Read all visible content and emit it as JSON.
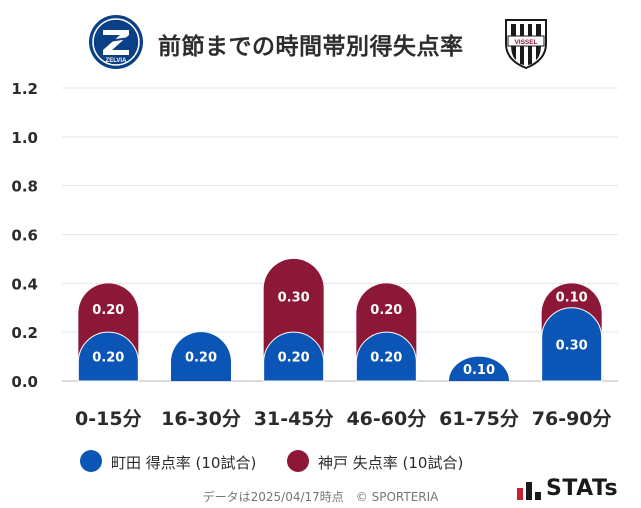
{
  "header": {
    "title": "前節までの時間帯別得失点率",
    "left_logo_text": "ZELVIA",
    "right_logo_text": "VISSEL"
  },
  "chart_data": {
    "type": "bar",
    "stacked": true,
    "categories": [
      "0-15分",
      "16-30分",
      "31-45分",
      "46-60分",
      "61-75分",
      "76-90分"
    ],
    "series": [
      {
        "name": "町田 得点率 (10試合)",
        "values": [
          0.2,
          0.2,
          0.2,
          0.2,
          0.1,
          0.3
        ],
        "labels": [
          "0.20",
          "0.20",
          "0.20",
          "0.20",
          "0.10",
          "0.30"
        ],
        "color": "#0a55b5"
      },
      {
        "name": "神戸 失点率 (10試合)",
        "values": [
          0.2,
          0.0,
          0.3,
          0.2,
          0.0,
          0.1
        ],
        "labels": [
          "0.20",
          "",
          "0.30",
          "0.20",
          "",
          "0.10"
        ],
        "color": "#8c1737"
      }
    ],
    "yticks": [
      "0.0",
      "0.2",
      "0.4",
      "0.6",
      "0.8",
      "1.0",
      "1.2"
    ],
    "ylim": [
      0,
      1.2
    ],
    "grid": true,
    "legend_position": "bottom-left"
  },
  "footer": {
    "note": "データは2025/04/17時点　© SPORTERIA",
    "brand": "STATs"
  }
}
